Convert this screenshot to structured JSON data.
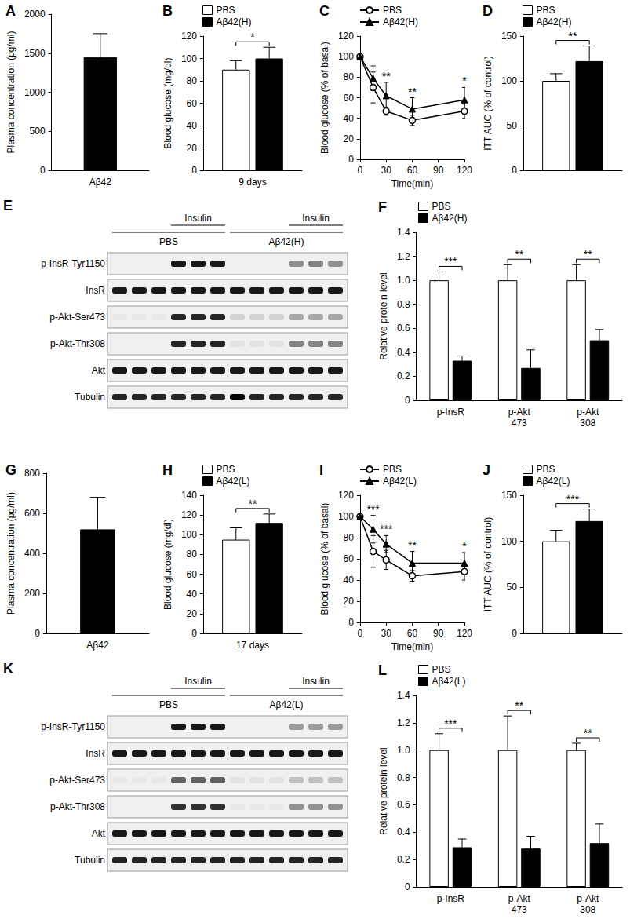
{
  "chart_data": [
    {
      "type": "bar",
      "title": "A",
      "categories": [
        "Aβ42"
      ],
      "values": [
        1450
      ],
      "errors": [
        300
      ],
      "color": "#000000",
      "ylabel": "Plasma concentration (pg/ml)",
      "ylim": [
        0,
        2000
      ],
      "yticks": [
        0,
        500,
        1000,
        1500,
        2000
      ],
      "grid": false
    },
    {
      "type": "bar",
      "title": "B",
      "categories": [
        "9 days"
      ],
      "series": [
        {
          "name": "PBS",
          "color": "#ffffff",
          "values": [
            90
          ],
          "errors": [
            8
          ]
        },
        {
          "name": "Aβ42(H)",
          "color": "#000000",
          "values": [
            100
          ],
          "errors": [
            10
          ]
        }
      ],
      "annotations": [
        "*"
      ],
      "ylabel": "Blood glucose (mg/dl)",
      "ylim": [
        0,
        120
      ],
      "yticks": [
        0,
        20,
        40,
        60,
        80,
        100,
        120
      ],
      "legend": "top-left",
      "grid": false
    },
    {
      "type": "line",
      "title": "C",
      "x": [
        0,
        15,
        30,
        60,
        120
      ],
      "series": [
        {
          "name": "PBS",
          "color": "#000000",
          "marker": "open_circle",
          "values": [
            100,
            70,
            47,
            38,
            47
          ],
          "errors": [
            0,
            15,
            4,
            5,
            7
          ]
        },
        {
          "name": "Aβ42(H)",
          "color": "#000000",
          "marker": "triangle",
          "values": [
            100,
            79,
            62,
            49,
            58
          ],
          "errors": [
            0,
            12,
            13,
            11,
            12
          ]
        }
      ],
      "annotations": [
        null,
        null,
        "**",
        "**",
        "*"
      ],
      "xlabel": "Time(min)",
      "ylabel": "Blood glucose (% of basal)",
      "xlim": [
        0,
        120
      ],
      "xticks": [
        0,
        30,
        60,
        90,
        120
      ],
      "ylim": [
        0,
        120
      ],
      "yticks": [
        0,
        20,
        40,
        60,
        80,
        100,
        120
      ],
      "legend": "top-left",
      "grid": false
    },
    {
      "type": "bar",
      "title": "D",
      "categories": [
        null
      ],
      "series": [
        {
          "name": "PBS",
          "color": "#ffffff",
          "values": [
            100
          ],
          "errors": [
            8
          ]
        },
        {
          "name": "Aβ42(H)",
          "color": "#000000",
          "values": [
            122
          ],
          "errors": [
            17
          ]
        }
      ],
      "annotations": [
        "**"
      ],
      "ylabel": "ITT AUC (% of control)",
      "ylim": [
        0,
        150
      ],
      "yticks": [
        0,
        50,
        100,
        150
      ],
      "legend": "top-left",
      "grid": false
    },
    {
      "type": "bar",
      "title": "F",
      "categories": [
        "p-InsR",
        "p-Akt\n473",
        "p-Akt\n308"
      ],
      "series": [
        {
          "name": "PBS",
          "color": "#ffffff",
          "values": [
            1.0,
            1.0,
            1.0
          ],
          "errors": [
            0.07,
            0.13,
            0.13
          ]
        },
        {
          "name": "Aβ42(H)",
          "color": "#000000",
          "values": [
            0.33,
            0.27,
            0.5
          ],
          "errors": [
            0.04,
            0.15,
            0.09
          ]
        }
      ],
      "annotations": [
        "***",
        "**",
        "**"
      ],
      "ylabel": "Relative protein level",
      "ylim": [
        0,
        1.4
      ],
      "yticks": [
        0,
        0.2,
        0.4,
        0.6,
        0.8,
        {
          "value": 1,
          "label": "1.0"
        },
        1.2,
        1.4
      ],
      "legend": "top-left",
      "grid": false
    },
    {
      "type": "bar",
      "title": "G",
      "categories": [
        "Aβ42"
      ],
      "values": [
        520
      ],
      "errors": [
        160
      ],
      "color": "#000000",
      "ylabel": "Plasma concentration (pg/ml)",
      "ylim": [
        0,
        800
      ],
      "yticks": [
        0,
        200,
        400,
        600,
        800
      ],
      "grid": false
    },
    {
      "type": "bar",
      "title": "H",
      "categories": [
        "17 days"
      ],
      "series": [
        {
          "name": "PBS",
          "color": "#ffffff",
          "values": [
            95
          ],
          "errors": [
            12
          ]
        },
        {
          "name": "Aβ42(L)",
          "color": "#000000",
          "values": [
            112
          ],
          "errors": [
            9
          ]
        }
      ],
      "annotations": [
        "**"
      ],
      "ylabel": "Blood glucose (mg/dl)",
      "ylim": [
        0,
        140
      ],
      "yticks": [
        0,
        20,
        40,
        60,
        80,
        100,
        120,
        140
      ],
      "legend": "top-left",
      "grid": false
    },
    {
      "type": "line",
      "title": "I",
      "x": [
        0,
        15,
        30,
        60,
        120
      ],
      "series": [
        {
          "name": "PBS",
          "color": "#000000",
          "marker": "open_circle",
          "values": [
            100,
            67,
            59,
            44,
            48
          ],
          "errors": [
            0,
            15,
            9,
            5,
            8
          ]
        },
        {
          "name": "Aβ42(L)",
          "color": "#000000",
          "marker": "triangle",
          "values": [
            100,
            88,
            74,
            56,
            56
          ],
          "errors": [
            0,
            13,
            8,
            11,
            10
          ]
        }
      ],
      "annotations": [
        null,
        "***",
        "***",
        "**",
        "*"
      ],
      "xlabel": "Time(min)",
      "ylabel": "Blood glucose (% of basal)",
      "xlim": [
        0,
        120
      ],
      "xticks": [
        0,
        30,
        60,
        90,
        120
      ],
      "ylim": [
        0,
        120
      ],
      "yticks": [
        0,
        20,
        40,
        60,
        80,
        100,
        120
      ],
      "legend": "top-left",
      "grid": false
    },
    {
      "type": "bar",
      "title": "J",
      "categories": [
        null
      ],
      "series": [
        {
          "name": "PBS",
          "color": "#ffffff",
          "values": [
            100
          ],
          "errors": [
            12
          ]
        },
        {
          "name": "Aβ42(L)",
          "color": "#000000",
          "values": [
            122
          ],
          "errors": [
            13
          ]
        }
      ],
      "annotations": [
        "***"
      ],
      "ylabel": "ITT AUC (% of control)",
      "ylim": [
        0,
        150
      ],
      "yticks": [
        0,
        50,
        100,
        150
      ],
      "legend": "top-left",
      "grid": false
    },
    {
      "type": "bar",
      "title": "L",
      "categories": [
        "p-InsR",
        "p-Akt\n473",
        "p-Akt\n308"
      ],
      "series": [
        {
          "name": "PBS",
          "color": "#ffffff",
          "values": [
            1.0,
            1.0,
            1.0
          ],
          "errors": [
            0.12,
            0.25,
            0.05
          ]
        },
        {
          "name": "Aβ42(L)",
          "color": "#000000",
          "values": [
            0.29,
            0.28,
            0.32
          ],
          "errors": [
            0.06,
            0.09,
            0.14
          ]
        }
      ],
      "annotations": [
        "***",
        "**",
        "**"
      ],
      "ylabel": "Relative protein level",
      "ylim": [
        0,
        1.4
      ],
      "yticks": [
        0,
        0.2,
        0.4,
        0.6,
        0.8,
        {
          "value": 1,
          "label": "1.0"
        },
        1.2,
        1.4
      ],
      "legend": "top-left",
      "grid": false
    }
  ],
  "blots": [
    {
      "title": "E",
      "treatment": "Insulin",
      "treated": [
        false,
        false,
        false,
        true,
        true,
        true,
        false,
        false,
        false,
        true,
        true,
        true
      ],
      "groups": [
        {
          "label": "PBS",
          "lanes": 6
        },
        {
          "label": "Aβ42(H)",
          "lanes": 6
        }
      ],
      "rows": [
        {
          "label": "p-InsR-Tyr1150",
          "bands": [
            0,
            0,
            0,
            0.9,
            0.9,
            0.9,
            0,
            0,
            0,
            0.4,
            0.45,
            0.4
          ]
        },
        {
          "label": "InsR",
          "bands": [
            0.9,
            0.9,
            0.9,
            0.9,
            0.9,
            0.9,
            0.9,
            0.9,
            0.9,
            0.9,
            0.9,
            0.9
          ]
        },
        {
          "label": "p-Akt-Ser473",
          "bands": [
            0.03,
            0.03,
            0.03,
            0.85,
            0.85,
            0.85,
            0.12,
            0.12,
            0.12,
            0.3,
            0.3,
            0.3
          ]
        },
        {
          "label": "p-Akt-Thr308",
          "bands": [
            0,
            0,
            0,
            0.85,
            0.85,
            0.85,
            0.05,
            0.05,
            0.05,
            0.45,
            0.45,
            0.45
          ]
        },
        {
          "label": "Akt",
          "bands": [
            0.9,
            0.9,
            0.9,
            0.9,
            0.9,
            0.9,
            0.9,
            0.9,
            0.9,
            0.9,
            0.9,
            0.9
          ]
        },
        {
          "label": "Tubulin",
          "bands": [
            0.85,
            0.85,
            0.85,
            0.85,
            0.85,
            0.85,
            1,
            0.85,
            0.85,
            0.85,
            0.85,
            0.85
          ]
        }
      ]
    },
    {
      "title": "K",
      "treatment": "Insulin",
      "treated": [
        false,
        false,
        false,
        true,
        true,
        true,
        false,
        false,
        false,
        true,
        true,
        true
      ],
      "groups": [
        {
          "label": "PBS",
          "lanes": 6
        },
        {
          "label": "Aβ42(L)",
          "lanes": 6
        }
      ],
      "rows": [
        {
          "label": "p-InsR-Tyr1150",
          "bands": [
            0,
            0,
            0,
            0.9,
            0.9,
            0.9,
            0,
            0,
            0,
            0.35,
            0.35,
            0.35
          ]
        },
        {
          "label": "InsR",
          "bands": [
            0.9,
            0.9,
            0.9,
            0.9,
            0.9,
            0.9,
            0.9,
            0.9,
            0.9,
            0.9,
            0.9,
            0.9
          ]
        },
        {
          "label": "p-Akt-Ser473",
          "bands": [
            0.03,
            0.03,
            0.03,
            0.6,
            0.6,
            0.6,
            0.05,
            0.05,
            0.05,
            0.2,
            0.2,
            0.2
          ]
        },
        {
          "label": "p-Akt-Thr308",
          "bands": [
            0,
            0,
            0,
            0.8,
            0.8,
            0.8,
            0.03,
            0.03,
            0.03,
            0.4,
            0.4,
            0.4
          ]
        },
        {
          "label": "Akt",
          "bands": [
            0.9,
            0.9,
            0.9,
            0.9,
            0.9,
            0.9,
            0.9,
            0.9,
            0.9,
            0.9,
            0.9,
            0.9
          ]
        },
        {
          "label": "Tubulin",
          "bands": [
            0.85,
            0.85,
            0.85,
            0.85,
            0.85,
            0.85,
            0.85,
            0.85,
            0.85,
            0.85,
            0.85,
            0.85
          ]
        }
      ]
    }
  ]
}
